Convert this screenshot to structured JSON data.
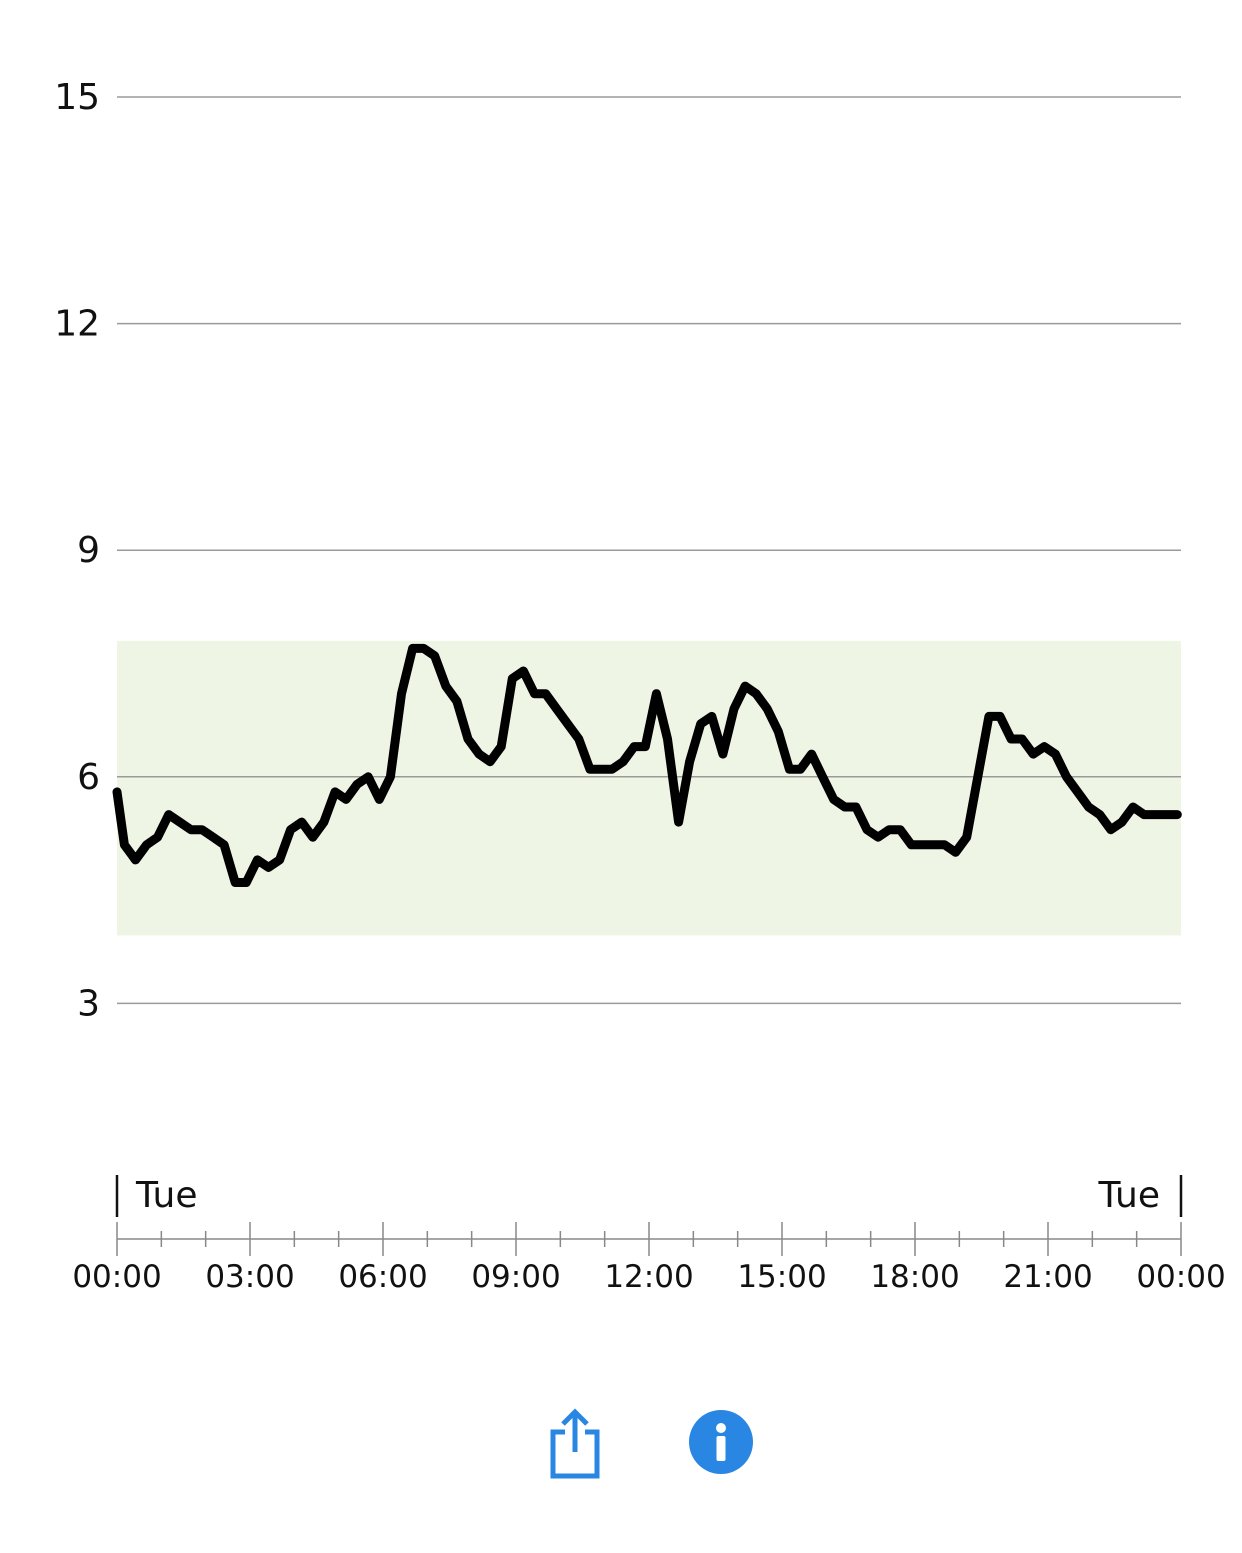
{
  "chart_data": {
    "type": "line",
    "y_ticks": [
      3,
      6,
      9,
      12,
      15
    ],
    "ylim": [
      0.9,
      15
    ],
    "x_ticks": [
      "00:00",
      "03:00",
      "06:00",
      "09:00",
      "12:00",
      "15:00",
      "18:00",
      "21:00",
      "00:00"
    ],
    "xlim": [
      "00:00",
      "24:00"
    ],
    "day_start_label": "Tue",
    "day_end_label": "Tue",
    "target_range": [
      3.9,
      7.8
    ],
    "target_range_color": "#eef5e4",
    "line_color": "#000000",
    "grid": true,
    "series": [
      {
        "x": [
          "00:00",
          "00:10",
          "00:25",
          "00:40",
          "00:55",
          "01:10",
          "01:25",
          "01:40",
          "01:55",
          "02:10",
          "02:25",
          "02:40",
          "02:55",
          "03:10",
          "03:25",
          "03:40",
          "03:55",
          "04:10",
          "04:25",
          "04:40",
          "04:55",
          "05:10",
          "05:25",
          "05:40",
          "05:55",
          "06:10",
          "06:25",
          "06:40",
          "06:55",
          "07:10",
          "07:25",
          "07:40",
          "07:55",
          "08:10",
          "08:25",
          "08:40",
          "08:55",
          "09:10",
          "09:25",
          "09:40",
          "09:55",
          "10:10",
          "10:25",
          "10:40",
          "10:55",
          "11:10",
          "11:25",
          "11:40",
          "11:55",
          "12:10",
          "12:25",
          "12:40",
          "12:55",
          "13:10",
          "13:25",
          "13:40",
          "13:55",
          "14:10",
          "14:25",
          "14:40",
          "14:55",
          "15:10",
          "15:25",
          "15:40",
          "15:55",
          "16:10",
          "16:25",
          "16:40",
          "16:55",
          "17:10",
          "17:25",
          "17:40",
          "17:55",
          "18:10",
          "18:25",
          "18:40",
          "18:55",
          "19:10",
          "19:25",
          "19:40",
          "19:55",
          "20:10",
          "20:25",
          "20:40",
          "20:55",
          "21:10",
          "21:25",
          "21:40",
          "21:55",
          "22:10",
          "22:25",
          "22:40",
          "22:55",
          "23:10",
          "23:25",
          "23:40",
          "23:55"
        ],
        "y": [
          5.8,
          5.1,
          4.9,
          5.1,
          5.2,
          5.5,
          5.4,
          5.3,
          5.3,
          5.2,
          5.1,
          4.6,
          4.6,
          4.9,
          4.8,
          4.9,
          5.3,
          5.4,
          5.2,
          5.4,
          5.8,
          5.7,
          5.9,
          6.0,
          5.7,
          6.0,
          7.1,
          7.7,
          7.7,
          7.6,
          7.2,
          7.0,
          6.5,
          6.3,
          6.2,
          6.4,
          7.3,
          7.4,
          7.1,
          7.1,
          6.9,
          6.7,
          6.5,
          6.1,
          6.1,
          6.1,
          6.2,
          6.4,
          6.4,
          7.1,
          6.5,
          5.4,
          6.2,
          6.7,
          6.8,
          6.3,
          6.9,
          7.2,
          7.1,
          6.9,
          6.6,
          6.1,
          6.1,
          6.3,
          6.0,
          5.7,
          5.6,
          5.6,
          5.3,
          5.2,
          5.3,
          5.3,
          5.1,
          5.1,
          5.1,
          5.1,
          5.0,
          5.2,
          6.0,
          6.8,
          6.8,
          6.5,
          6.5,
          6.3,
          6.4,
          6.3,
          6.0,
          5.8,
          5.6,
          5.5,
          5.3,
          5.4,
          5.6,
          5.5,
          5.5,
          5.5,
          5.5
        ]
      }
    ]
  },
  "toolbar": {
    "share_icon": "share-icon",
    "info_icon": "info-icon",
    "accent_color": "#2a86e3"
  }
}
